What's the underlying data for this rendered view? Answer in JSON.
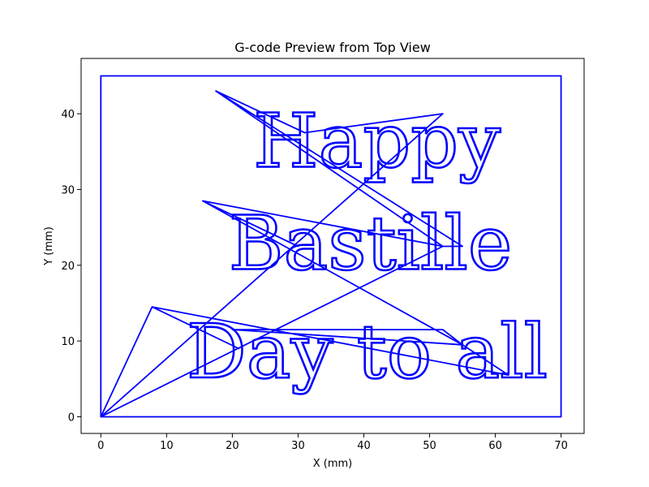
{
  "chart_data": {
    "type": "line",
    "title": "G-code Preview from Top View",
    "xlabel": "X (mm)",
    "ylabel": "Y (mm)",
    "xlim": [
      -3,
      73.5
    ],
    "ylim": [
      -2.2,
      47.3
    ],
    "xticks": [
      0,
      10,
      20,
      30,
      40,
      50,
      60,
      70
    ],
    "yticks": [
      0,
      10,
      20,
      30,
      40
    ],
    "grid": false,
    "line_color": "#0000ff",
    "series": [
      {
        "values": [
          {
            "x": 0,
            "y": 0
          },
          {
            "x": 70,
            "y": 0
          },
          {
            "x": 70,
            "y": 45
          },
          {
            "x": 0,
            "y": 45
          },
          {
            "x": 0,
            "y": 0
          }
        ]
      },
      {
        "values": [
          {
            "x": 0,
            "y": 0
          },
          {
            "x": 7.8,
            "y": 14.5
          },
          {
            "x": 21,
            "y": 9
          },
          {
            "x": 7.8,
            "y": 14.5
          },
          {
            "x": 62,
            "y": 5.5
          },
          {
            "x": 55,
            "y": 9.5
          },
          {
            "x": 20,
            "y": 11.5
          },
          {
            "x": 52,
            "y": 11.5
          },
          {
            "x": 55,
            "y": 9.5
          },
          {
            "x": 15.5,
            "y": 28.5
          },
          {
            "x": 30,
            "y": 22.5
          },
          {
            "x": 15.5,
            "y": 28.5
          },
          {
            "x": 52,
            "y": 22.5
          },
          {
            "x": 55,
            "y": 22.5
          },
          {
            "x": 17.5,
            "y": 43
          },
          {
            "x": 31,
            "y": 37.5
          },
          {
            "x": 17.5,
            "y": 43
          },
          {
            "x": 52,
            "y": 22.5
          },
          {
            "x": 0,
            "y": 0
          },
          {
            "x": 52,
            "y": 40
          },
          {
            "x": 31,
            "y": 37.5
          }
        ]
      }
    ],
    "annotations": [
      {
        "text": "Happy",
        "x": 42,
        "y": 33
      },
      {
        "text": "Bastille",
        "x": 41,
        "y": 19.5
      },
      {
        "text": "Day to all",
        "x": 40.5,
        "y": 5.2
      }
    ]
  }
}
